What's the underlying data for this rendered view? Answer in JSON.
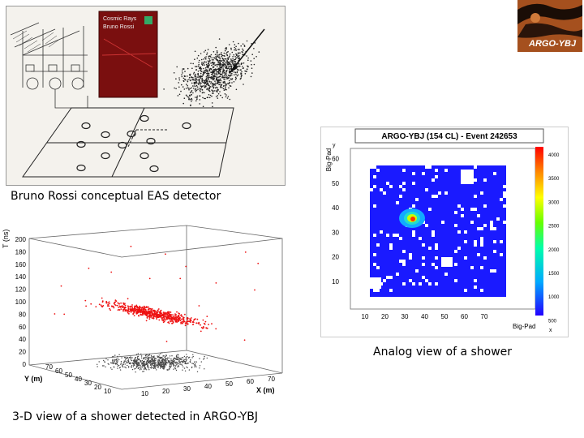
{
  "captions": {
    "rossi": "Bruno Rossi conceptual EAS detector",
    "analog": "Analog view of a shower",
    "view3d": "3-D view of a shower detected in ARGO-YBJ"
  },
  "logo": {
    "text": "ARGO-YBJ"
  },
  "book": {
    "line1": "Cosmic Rays",
    "line2": "Bruno Rossi"
  },
  "analog_plot": {
    "title": "ARGO-YBJ (154 CL)  -  Event 242653",
    "ylabel": "Big-Pad",
    "ylabel_sub": "y",
    "xlabel": "Big-Pad",
    "xlabel_sub": "x",
    "xticks": [
      "10",
      "20",
      "30",
      "40",
      "50",
      "60",
      "70"
    ],
    "yticks": [
      "10",
      "20",
      "30",
      "40",
      "50",
      "60"
    ],
    "colorbar": [
      "4000",
      "3500",
      "3000",
      "2500",
      "2000",
      "1500",
      "1000",
      "500"
    ],
    "colors": {
      "field": "#1a1aff",
      "bg": "#ffffff"
    }
  },
  "plot3d": {
    "zlabel": "T (ns)",
    "ylabel": "Y (m)",
    "xlabel": "X (m)",
    "zticks": [
      "200",
      "180",
      "160",
      "140",
      "120",
      "100",
      "80",
      "60",
      "40",
      "20",
      "0"
    ],
    "yticks": [
      "70",
      "60",
      "50",
      "40",
      "30",
      "20",
      "10"
    ],
    "xticks": [
      "10",
      "20",
      "30",
      "40",
      "50",
      "60",
      "70"
    ],
    "colors": {
      "points": "#ee1111",
      "ground": "#444444"
    }
  }
}
